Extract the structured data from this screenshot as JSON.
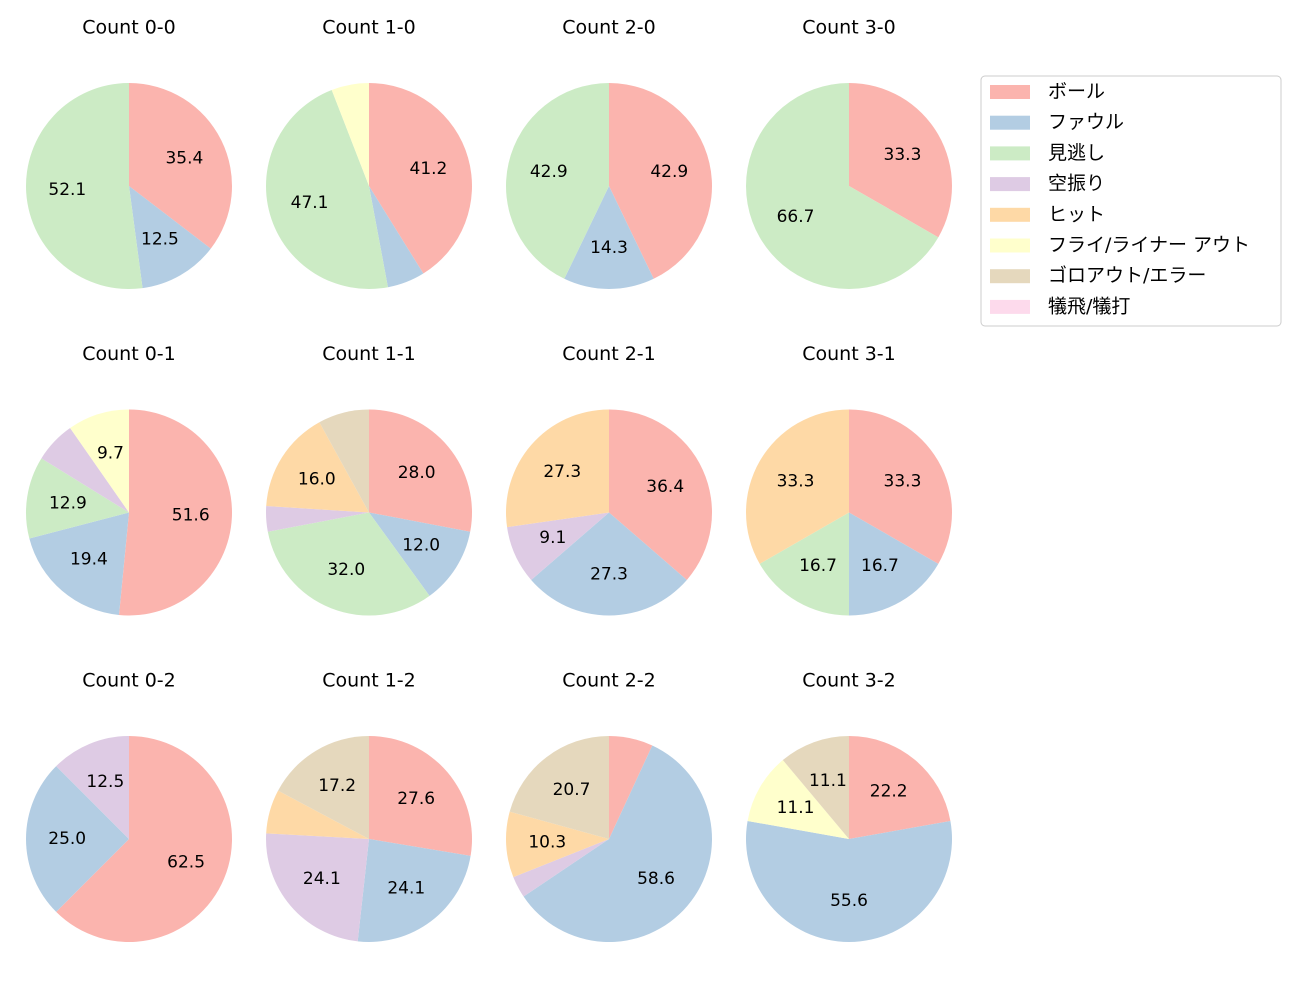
{
  "legend": {
    "labels": [
      "ボール",
      "ファウル",
      "見逃し",
      "空振り",
      "ヒット",
      "フライ/ライナー アウト",
      "ゴロアウト/エラー",
      "犠飛/犠打"
    ],
    "colors": [
      "#fbb4ae",
      "#b3cde3",
      "#ccebc5",
      "#decbe4",
      "#fed9a6",
      "#ffffcc",
      "#e5d8bd",
      "#fddaec"
    ]
  },
  "chart_data": [
    {
      "type": "pie",
      "title": "Count 0-0",
      "values": [
        35.4,
        12.5,
        52.1,
        0,
        0,
        0,
        0,
        0
      ],
      "value_labels": [
        "35.4",
        "12.5",
        "52.1",
        null,
        null,
        null,
        null,
        null
      ]
    },
    {
      "type": "pie",
      "title": "Count 1-0",
      "values": [
        41.2,
        5.9,
        47.1,
        0,
        0,
        5.9,
        0,
        0
      ],
      "value_labels": [
        "41.2",
        null,
        "47.1",
        null,
        null,
        null,
        null,
        null
      ]
    },
    {
      "type": "pie",
      "title": "Count 2-0",
      "values": [
        42.9,
        14.3,
        42.9,
        0,
        0,
        0,
        0,
        0
      ],
      "value_labels": [
        "42.9",
        "14.3",
        "42.9",
        null,
        null,
        null,
        null,
        null
      ]
    },
    {
      "type": "pie",
      "title": "Count 3-0",
      "values": [
        33.3,
        0,
        66.7,
        0,
        0,
        0,
        0,
        0
      ],
      "value_labels": [
        "33.3",
        null,
        "66.7",
        null,
        null,
        null,
        null,
        null
      ]
    },
    {
      "type": "pie",
      "title": "Count 0-1",
      "values": [
        51.6,
        19.4,
        12.9,
        6.5,
        0,
        9.7,
        0,
        0
      ],
      "value_labels": [
        "51.6",
        "19.4",
        "12.9",
        null,
        null,
        "9.7",
        null,
        null
      ]
    },
    {
      "type": "pie",
      "title": "Count 1-1",
      "values": [
        28.0,
        12.0,
        32.0,
        4.0,
        16.0,
        0,
        8.0,
        0
      ],
      "value_labels": [
        "28.0",
        "12.0",
        "32.0",
        null,
        "16.0",
        null,
        null,
        null
      ]
    },
    {
      "type": "pie",
      "title": "Count 2-1",
      "values": [
        36.4,
        27.3,
        0,
        9.1,
        27.3,
        0,
        0,
        0
      ],
      "value_labels": [
        "36.4",
        "27.3",
        null,
        "9.1",
        "27.3",
        null,
        null,
        null
      ]
    },
    {
      "type": "pie",
      "title": "Count 3-1",
      "values": [
        33.3,
        16.7,
        16.7,
        0,
        33.3,
        0,
        0,
        0
      ],
      "value_labels": [
        "33.3",
        "16.7",
        "16.7",
        null,
        "33.3",
        null,
        null,
        null
      ]
    },
    {
      "type": "pie",
      "title": "Count 0-2",
      "values": [
        62.5,
        25.0,
        0,
        12.5,
        0,
        0,
        0,
        0
      ],
      "value_labels": [
        "62.5",
        "25.0",
        null,
        "12.5",
        null,
        null,
        null,
        null
      ]
    },
    {
      "type": "pie",
      "title": "Count 1-2",
      "values": [
        27.6,
        24.1,
        0,
        24.1,
        6.9,
        0,
        17.2,
        0
      ],
      "value_labels": [
        "27.6",
        "24.1",
        null,
        "24.1",
        null,
        null,
        "17.2",
        null
      ]
    },
    {
      "type": "pie",
      "title": "Count 2-2",
      "values": [
        6.9,
        58.6,
        0,
        3.4,
        10.3,
        0,
        20.7,
        0
      ],
      "value_labels": [
        null,
        "58.6",
        null,
        null,
        "10.3",
        null,
        "20.7",
        null
      ]
    },
    {
      "type": "pie",
      "title": "Count 3-2",
      "values": [
        22.2,
        55.6,
        0,
        0,
        0,
        11.1,
        11.1,
        0
      ],
      "value_labels": [
        "22.2",
        "55.6",
        null,
        null,
        null,
        "11.1",
        "11.1",
        null
      ]
    }
  ]
}
